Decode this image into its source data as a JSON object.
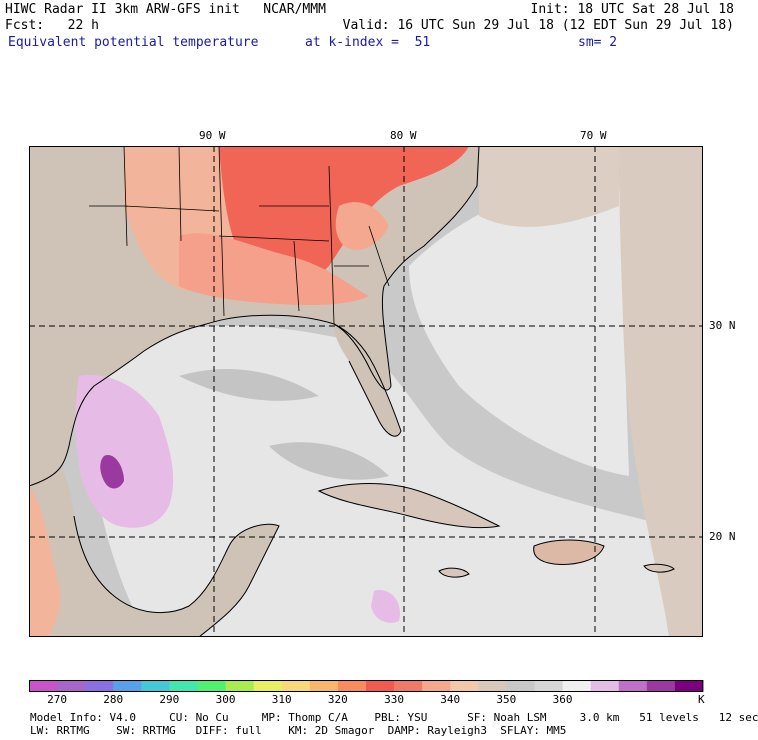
{
  "header": {
    "line1_left": "HIWC Radar II 3km ARW-GFS init   NCAR/MMM",
    "line1_right": "Init: 18 UTC Sat 28 Jul 18",
    "line2_left": "Fcst:   22 h",
    "line2_right": "Valid: 16 UTC Sun 29 Jul 18 (12 EDT Sun 29 Jul 18)",
    "field_name": "Equivalent potential temperature",
    "level": "at k-index =  51",
    "smooth": "sm= 2"
  },
  "map": {
    "lon_labels": [
      "90 W",
      "80 W",
      "70 W"
    ],
    "lat_labels": [
      "30 N",
      "20 N"
    ]
  },
  "colorbar": {
    "colors": [
      "#c854c8",
      "#a866c8",
      "#8a70e0",
      "#5aa0e8",
      "#44c8d8",
      "#40e8b0",
      "#50f070",
      "#a8ec50",
      "#e6f060",
      "#f8d878",
      "#f8b86c",
      "#f88c60",
      "#f05a50",
      "#f07a68",
      "#f4a88c",
      "#f2c8a8",
      "#d8c8bc",
      "#c8c8c8",
      "#d6d6d6",
      "#f0f0f0",
      "#e6bce6",
      "#c070c8",
      "#9a3aa0",
      "#7a0080"
    ],
    "tick_labels": [
      "270",
      "280",
      "290",
      "300",
      "310",
      "320",
      "330",
      "340",
      "350",
      "360"
    ],
    "unit": "K"
  },
  "footer": {
    "line1": "Model Info: V4.0     CU: No Cu     MP: Thomp C/A    PBL: YSU      SF: Noah LSM     3.0 km   51 levels   12 sec",
    "line2": "LW: RRTMG    SW: RRTMG   DIFF: full    KM: 2D Smagor  DAMP: Rayleigh3  SFLAY: MM5"
  }
}
